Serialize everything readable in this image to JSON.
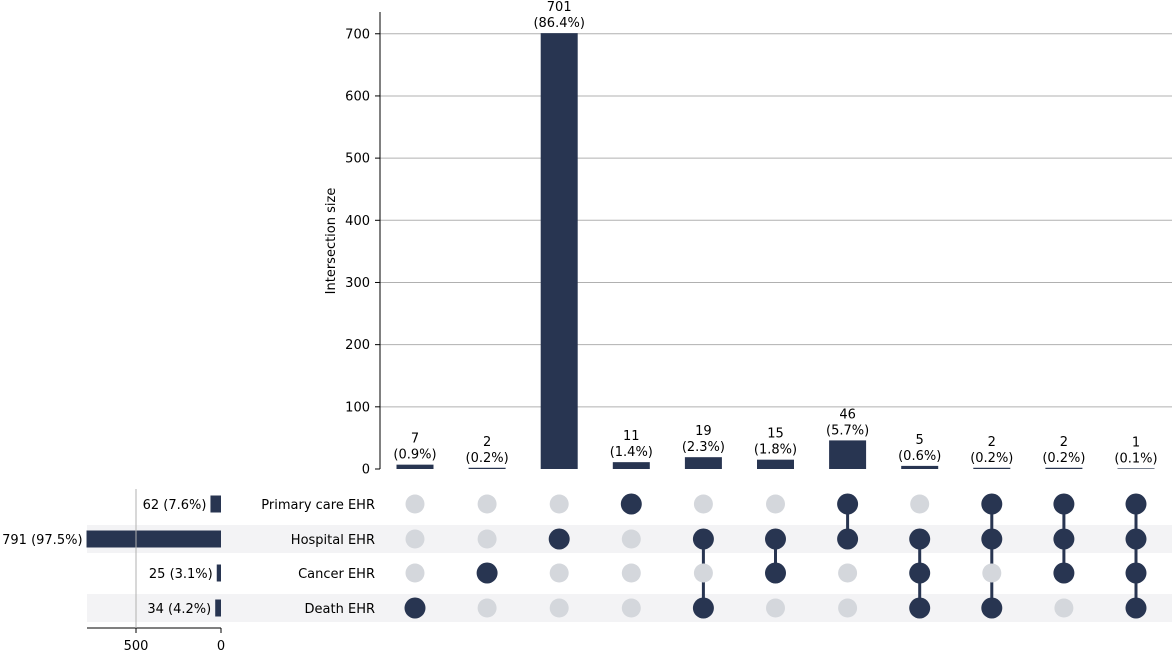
{
  "chart_data": {
    "type": "upset",
    "colors": {
      "bar": "#283551",
      "dot_active": "#283551",
      "dot_inactive": "#d4d7dc",
      "stripe": "#f3f3f5",
      "grid": "#b0b0b0"
    },
    "intersections": {
      "ylabel": "Intersection size",
      "ylim": [
        0,
        735
      ],
      "yticks": [
        "0",
        "100",
        "200",
        "300",
        "400",
        "500",
        "600",
        "700"
      ],
      "ytick_values": [
        0,
        100,
        200,
        300,
        400,
        500,
        600,
        700
      ],
      "grid": true,
      "values": [
        7,
        2,
        701,
        11,
        19,
        15,
        46,
        5,
        2,
        2,
        1
      ],
      "labels": [
        "7",
        "2",
        "701",
        "11",
        "19",
        "15",
        "46",
        "5",
        "2",
        "2",
        "1"
      ],
      "percents": [
        "(0.9%)",
        "(0.2%)",
        "(86.4%)",
        "(1.4%)",
        "(2.3%)",
        "(1.8%)",
        "(5.7%)",
        "(0.6%)",
        "(0.2%)",
        "(0.2%)",
        "(0.1%)"
      ],
      "membership": [
        [
          0,
          0,
          0,
          1
        ],
        [
          0,
          0,
          1,
          0
        ],
        [
          0,
          1,
          0,
          0
        ],
        [
          1,
          0,
          0,
          0
        ],
        [
          0,
          1,
          0,
          1
        ],
        [
          0,
          1,
          1,
          0
        ],
        [
          1,
          1,
          0,
          0
        ],
        [
          0,
          1,
          1,
          1
        ],
        [
          1,
          1,
          0,
          1
        ],
        [
          1,
          1,
          1,
          0
        ],
        [
          1,
          1,
          1,
          1
        ]
      ]
    },
    "sets": {
      "names": [
        "Primary care EHR",
        "Hospital EHR",
        "Cancer EHR",
        "Death EHR"
      ],
      "sizes": [
        62,
        791,
        25,
        34
      ],
      "size_labels": [
        "62 (7.6%)",
        "791 (97.5%)",
        "25 (3.1%)",
        "34 (4.2%)"
      ],
      "xticks": [
        "500",
        "0"
      ],
      "xtick_values": [
        500,
        0
      ]
    }
  }
}
